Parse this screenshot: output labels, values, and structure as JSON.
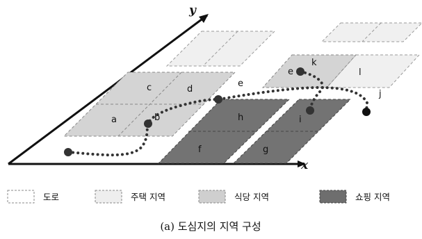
{
  "axes": {
    "x": "x",
    "y": "y"
  },
  "zone_labels": [
    "a",
    "b",
    "c",
    "d",
    "e",
    "f",
    "g",
    "h",
    "i",
    "e",
    "k",
    "l",
    "j"
  ],
  "legend": [
    {
      "label": "도로",
      "fill": "#ffffff"
    },
    {
      "label": "주택 지역",
      "fill": "#eeeeee"
    },
    {
      "label": "식당 지역",
      "fill": "#cfcfcf"
    },
    {
      "label": "쇼핑 지역",
      "fill": "#6e6e6e"
    }
  ],
  "caption": "(a) 도심지의 지역 구성",
  "colors": {
    "road": "#ffffff",
    "residential": "#eeeeee",
    "restaurant": "#cfcfcf",
    "shopping": "#6e6e6e",
    "path": "#333333"
  }
}
